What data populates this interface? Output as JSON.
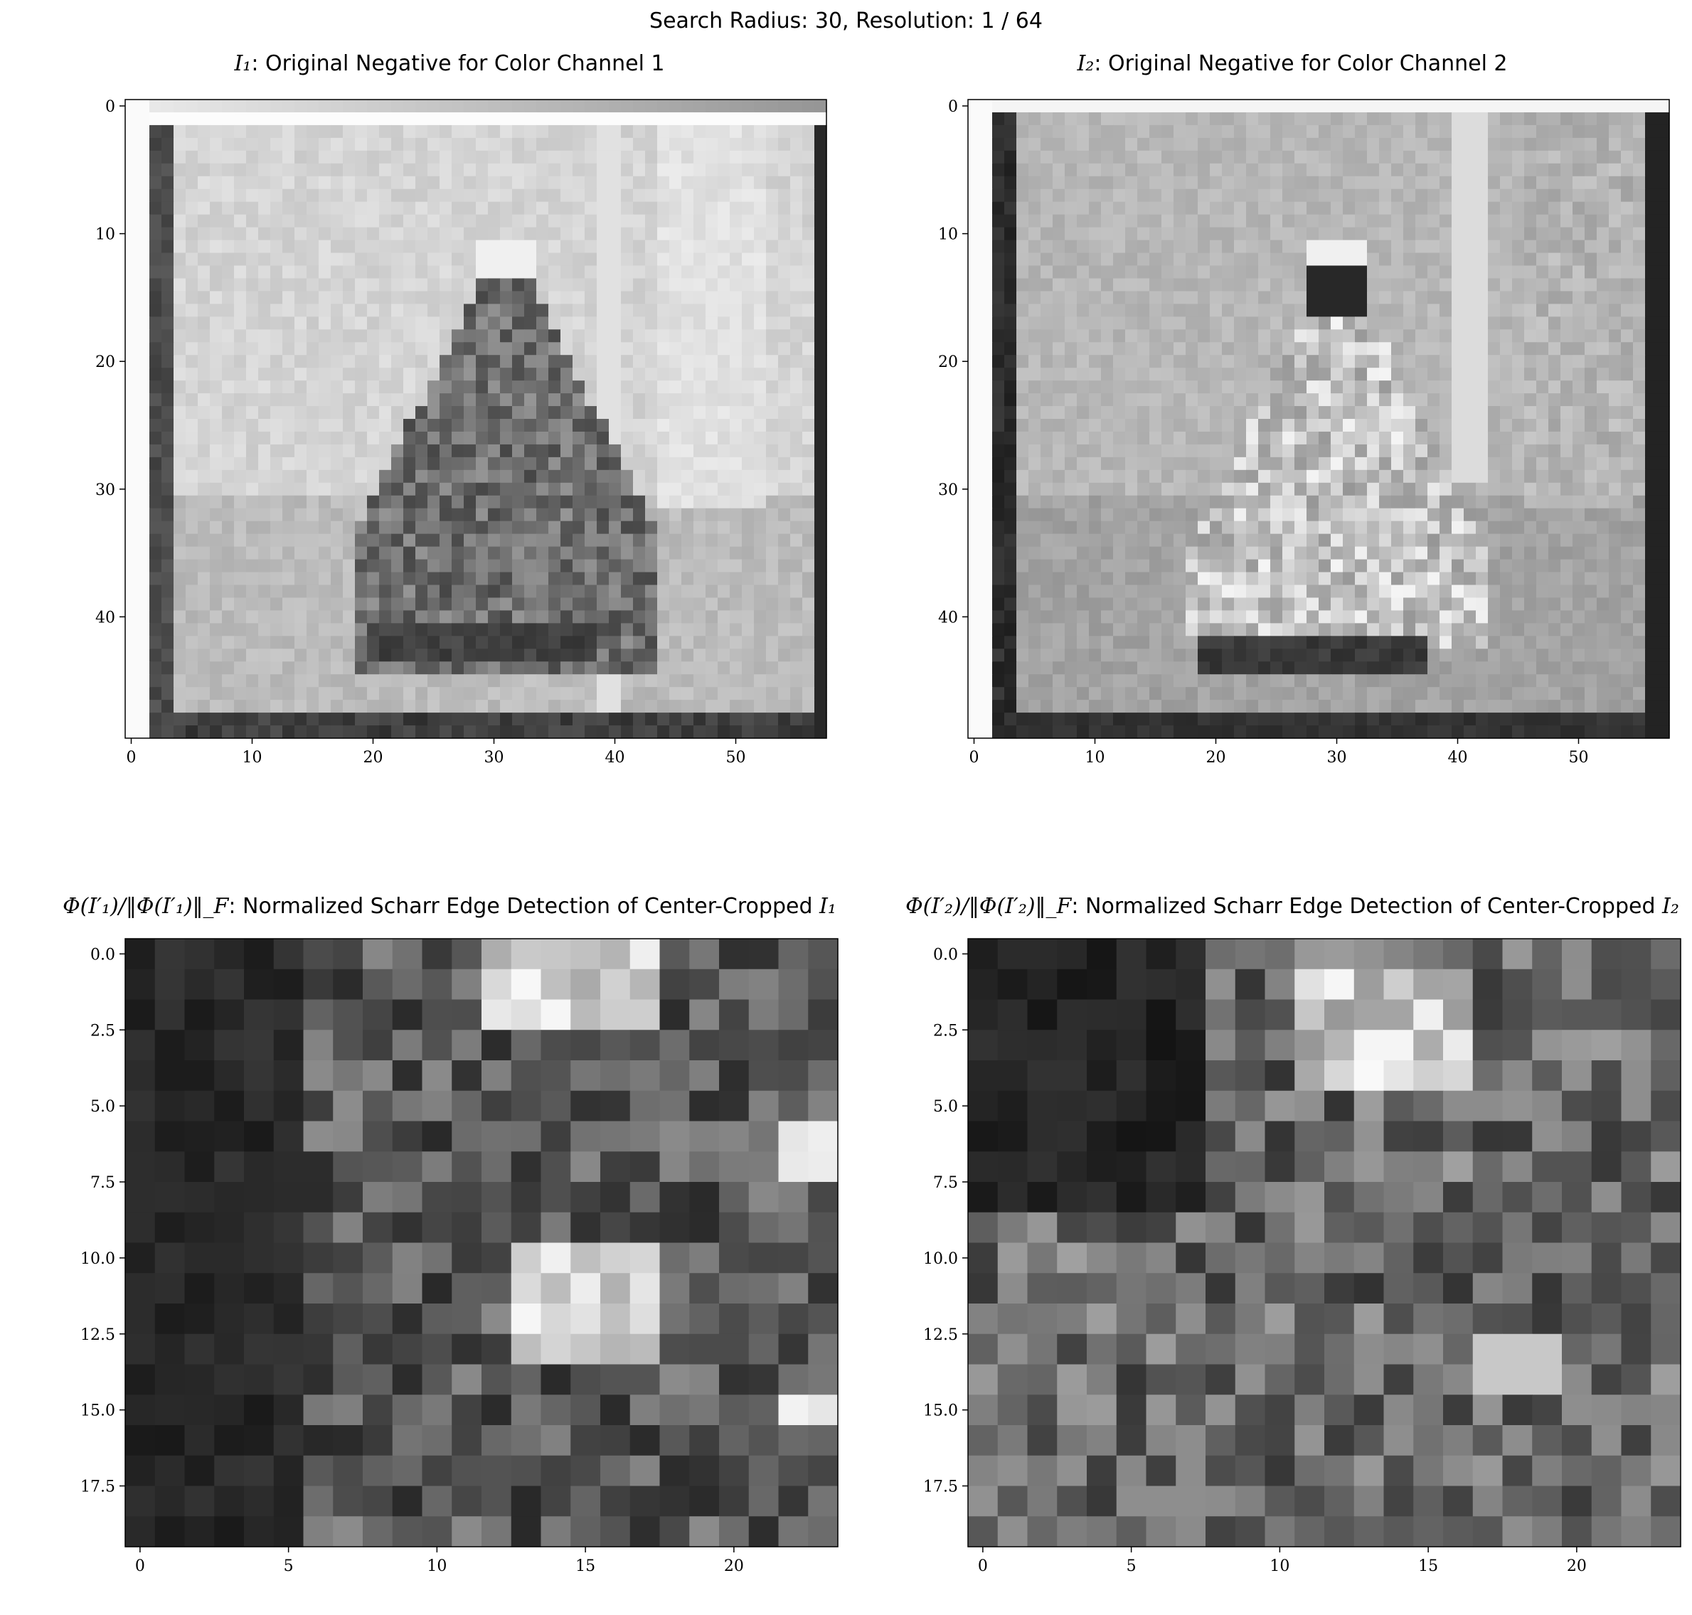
{
  "figure": {
    "suptitle": "Search Radius: 30, Resolution: 1 / 64"
  },
  "colors": {
    "background": "#ffffff",
    "axes": "#000000",
    "cmap": "gray"
  },
  "chart_data": [
    {
      "type": "heatmap",
      "cmap": "gray",
      "title_math": "I₁",
      "title_text": ": Original Negative for Color Channel 1",
      "xlim": [
        -0.5,
        57.5
      ],
      "ylim": [
        49.5,
        -0.5
      ],
      "xticks": [
        0,
        10,
        20,
        30,
        40,
        50
      ],
      "yticks": [
        0,
        10,
        20,
        30,
        40
      ],
      "xtick_labels": [
        "0",
        "10",
        "20",
        "30",
        "40",
        "50"
      ],
      "ytick_labels": [
        "0",
        "10",
        "20",
        "30",
        "40"
      ],
      "grid_size": [
        58,
        50
      ]
    },
    {
      "type": "heatmap",
      "cmap": "gray",
      "title_math": "I₂",
      "title_text": ": Original Negative for Color Channel 2",
      "xlim": [
        -0.5,
        57.5
      ],
      "ylim": [
        49.5,
        -0.5
      ],
      "xticks": [
        0,
        10,
        20,
        30,
        40,
        50
      ],
      "yticks": [
        0,
        10,
        20,
        30,
        40
      ],
      "xtick_labels": [
        "0",
        "10",
        "20",
        "30",
        "40",
        "50"
      ],
      "ytick_labels": [
        "0",
        "10",
        "20",
        "30",
        "40"
      ],
      "grid_size": [
        58,
        50
      ]
    },
    {
      "type": "heatmap",
      "cmap": "gray",
      "title_math": "Φ(I′₁)/‖Φ(I′₁)‖_F",
      "title_text": ": Normalized Scharr Edge Detection of Center-Cropped ",
      "title_math_end": "I₁",
      "xlim": [
        -0.5,
        23.5
      ],
      "ylim": [
        19.5,
        -0.5
      ],
      "xticks": [
        0,
        5,
        10,
        15,
        20
      ],
      "yticks": [
        0.0,
        2.5,
        5.0,
        7.5,
        10.0,
        12.5,
        15.0,
        17.5
      ],
      "xtick_labels": [
        "0",
        "5",
        "10",
        "15",
        "20"
      ],
      "ytick_labels": [
        "0.0",
        "2.5",
        "5.0",
        "7.5",
        "10.0",
        "12.5",
        "15.0",
        "17.5"
      ],
      "grid_size": [
        24,
        20
      ]
    },
    {
      "type": "heatmap",
      "cmap": "gray",
      "title_math": "Φ(I′₂)/‖Φ(I′₂)‖_F",
      "title_text": ": Normalized Scharr Edge Detection of Center-Cropped ",
      "title_math_end": "I₂",
      "xlim": [
        -0.5,
        23.5
      ],
      "ylim": [
        19.5,
        -0.5
      ],
      "xticks": [
        0,
        5,
        10,
        15,
        20
      ],
      "yticks": [
        0.0,
        2.5,
        5.0,
        7.5,
        10.0,
        12.5,
        15.0,
        17.5
      ],
      "xtick_labels": [
        "0",
        "5",
        "10",
        "15",
        "20"
      ],
      "ytick_labels": [
        "0.0",
        "2.5",
        "5.0",
        "7.5",
        "10.0",
        "12.5",
        "15.0",
        "17.5"
      ],
      "grid_size": [
        24,
        20
      ]
    }
  ]
}
